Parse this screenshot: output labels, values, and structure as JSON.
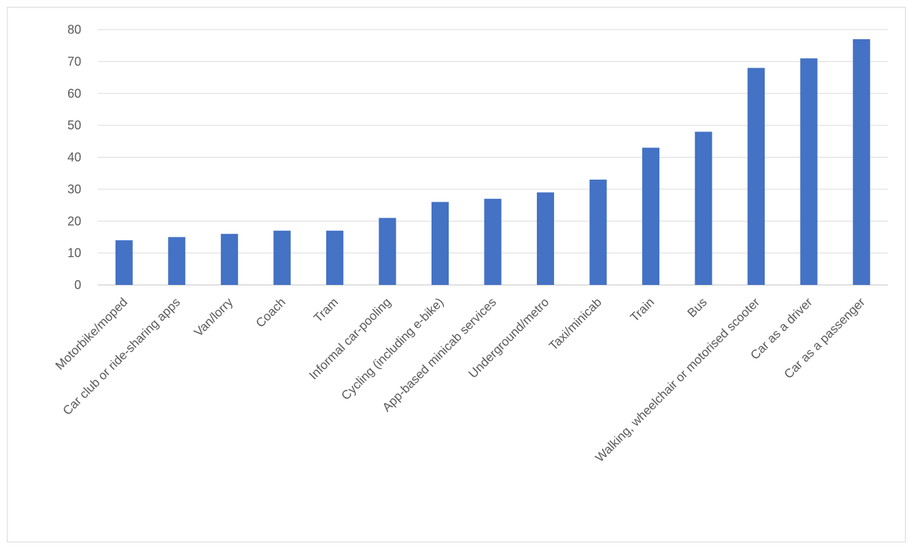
{
  "chart_data": {
    "type": "bar",
    "title": "",
    "xlabel": "",
    "ylabel": "",
    "ylim": [
      0,
      80
    ],
    "yticks": [
      0,
      10,
      20,
      30,
      40,
      50,
      60,
      70,
      80
    ],
    "grid": true,
    "legend": "none",
    "bar_color": "#4472c4",
    "categories": [
      "Motorbike/moped",
      "Car club or ride-sharing apps",
      "Van/lorry",
      "Coach",
      "Tram",
      "Informal car-pooling",
      "Cycling (including e-bike)",
      "App-based minicab services",
      "Underground/metro",
      "Taxi/minicab",
      "Train",
      "Bus",
      "Walking, wheelchair or motorised scooter",
      "Car as a driver",
      "Car as a passenger"
    ],
    "values": [
      14,
      15,
      16,
      17,
      17,
      21,
      26,
      27,
      29,
      33,
      43,
      48,
      68,
      71,
      77
    ]
  }
}
